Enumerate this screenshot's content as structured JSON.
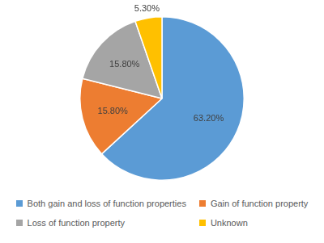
{
  "chart_data": {
    "type": "pie",
    "categories": [
      "Both gain and loss of function properties",
      "Gain of function property",
      "Loss of function property",
      "Unknown"
    ],
    "values": [
      63.2,
      15.8,
      15.8,
      5.3
    ],
    "value_labels": [
      "63.20%",
      "15.80%",
      "15.80%",
      "5.30%"
    ],
    "colors": [
      "#5b9bd5",
      "#ed7d31",
      "#a5a5a5",
      "#ffc000"
    ],
    "data_labels": true,
    "legend": "bottom"
  }
}
